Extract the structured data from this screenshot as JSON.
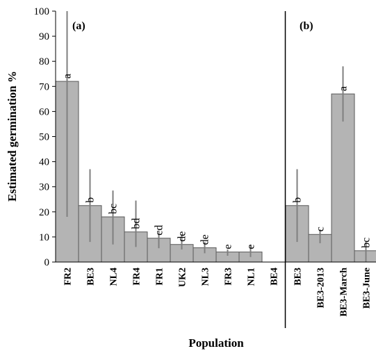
{
  "chart_data": {
    "type": "bar",
    "xlabel": "Population",
    "ylabel": "Estimated  germination  %",
    "ylim": [
      0,
      100
    ],
    "yticks": [
      0,
      10,
      20,
      30,
      40,
      50,
      60,
      70,
      80,
      90,
      100
    ],
    "grid": false,
    "panels": [
      {
        "label": "(a)",
        "categories": [
          "FR2",
          "BE3",
          "NL4",
          "FR4",
          "FR1",
          "UK2",
          "NL3",
          "FR3",
          "NL1",
          "BE4"
        ],
        "values": [
          72,
          22.5,
          18,
          12,
          9.5,
          7,
          5.7,
          4,
          4,
          0
        ],
        "err_low": [
          18,
          8,
          7,
          6,
          5.5,
          5,
          3.5,
          2.5,
          2,
          0
        ],
        "err_high": [
          100,
          37,
          28.5,
          24.5,
          12.5,
          11,
          8,
          5,
          6.5,
          0
        ],
        "letters": [
          "a",
          "b",
          "bc",
          "bd",
          "cd",
          "de",
          "de",
          "e",
          "e",
          ""
        ]
      },
      {
        "label": "(b)",
        "categories": [
          "BE3",
          "BE3-2013",
          "BE3-March",
          "BE3-June"
        ],
        "values": [
          22.5,
          11,
          67,
          4.5
        ],
        "err_low": [
          8,
          7.5,
          56,
          0
        ],
        "err_high": [
          37,
          13,
          78,
          8
        ],
        "letters": [
          "b",
          "c",
          "a",
          "bc"
        ]
      }
    ],
    "colors": {
      "bar": "#b4b4b4",
      "bar_edge": "#595959",
      "error_bar": "#7f7f7f",
      "axis": "#000000"
    }
  }
}
